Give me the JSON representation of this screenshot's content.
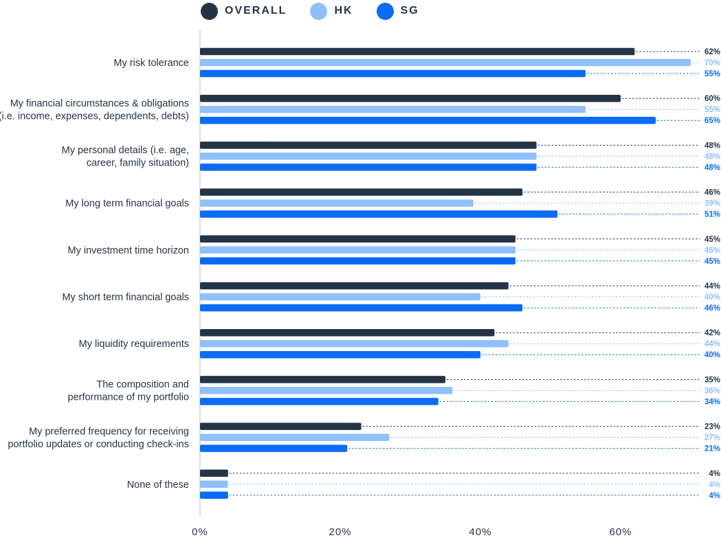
{
  "legend": [
    {
      "label": "OVERALL",
      "color": "#243447"
    },
    {
      "label": "HK",
      "color": "#8fc0fb"
    },
    {
      "label": "SG",
      "color": "#0a6cf5"
    }
  ],
  "chart_data": {
    "type": "bar",
    "orientation": "horizontal",
    "title": "",
    "xlabel": "",
    "ylabel": "",
    "xlim": [
      0,
      72
    ],
    "x_ticks": [
      "0%",
      "20%",
      "40%",
      "60%"
    ],
    "x_tick_values": [
      0,
      20,
      40,
      60
    ],
    "grid": false,
    "legend_position": "top-left",
    "categories": [
      [
        "My risk tolerance"
      ],
      [
        "My financial circumstances & obligations",
        "(i.e. income, expenses, dependents, debts)"
      ],
      [
        "My personal details (i.e. age,",
        "career, family situation)"
      ],
      [
        "My long term financial goals"
      ],
      [
        "My investment time horizon"
      ],
      [
        "My short term financial goals"
      ],
      [
        "My liquidity requirements"
      ],
      [
        "The composition and",
        "performance of my portfolio"
      ],
      [
        "My preferred frequency for receiving",
        "portfolio updates or conducting check-ins"
      ],
      [
        "None of these"
      ]
    ],
    "series": [
      {
        "name": "OVERALL",
        "color": "#243447",
        "label_color": "#243447",
        "values": [
          62,
          60,
          48,
          46,
          45,
          44,
          42,
          35,
          23,
          4
        ],
        "labels": [
          "62%",
          "60%",
          "48%",
          "46%",
          "45%",
          "44%",
          "42%",
          "35%",
          "23%",
          "4%"
        ]
      },
      {
        "name": "HK",
        "color": "#8fc0fb",
        "label_color": "#8fc0fb",
        "values": [
          70,
          55,
          48,
          39,
          45,
          40,
          44,
          36,
          27,
          4
        ],
        "labels": [
          "70%",
          "55%",
          "48%",
          "39%",
          "45%",
          "40%",
          "44%",
          "36%",
          "27%",
          "4%"
        ]
      },
      {
        "name": "SG",
        "color": "#0a6cf5",
        "label_color": "#0a6cf5",
        "values": [
          55,
          65,
          48,
          51,
          45,
          46,
          40,
          34,
          21,
          4
        ],
        "labels": [
          "55%",
          "65%",
          "48%",
          "51%",
          "45%",
          "46%",
          "40%",
          "34%",
          "21%",
          "4%"
        ]
      }
    ]
  }
}
